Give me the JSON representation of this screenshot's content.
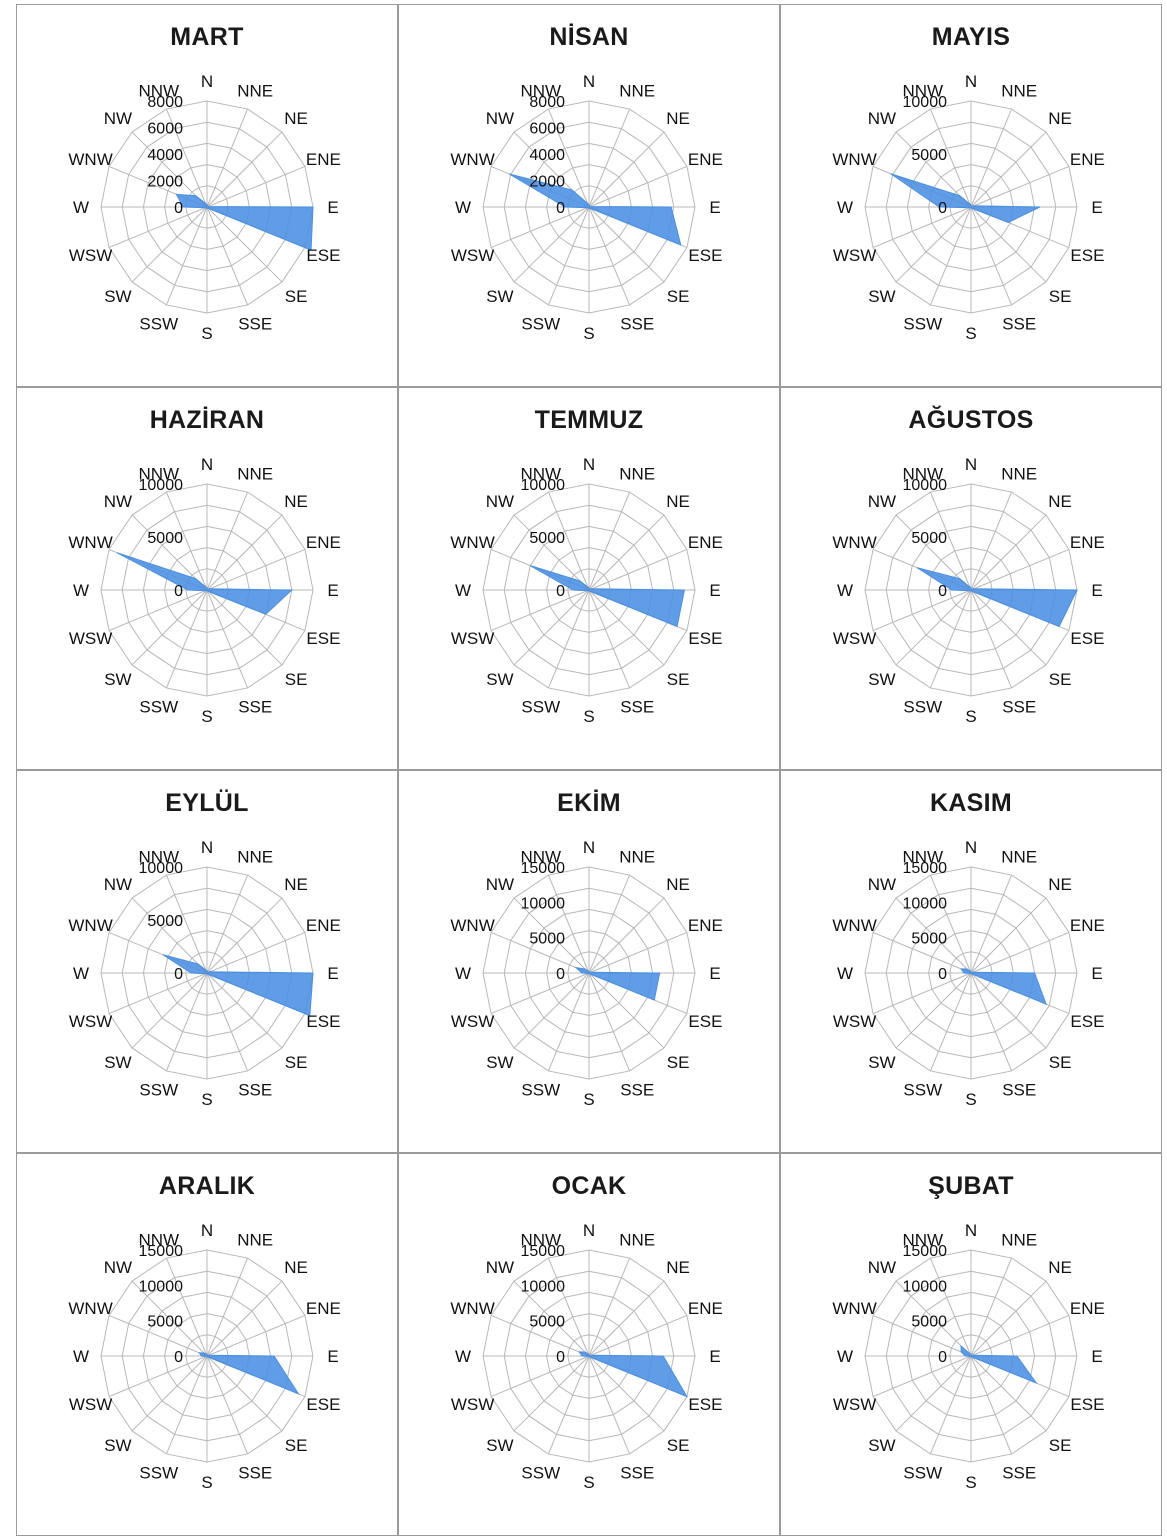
{
  "colors": {
    "fill": "#4a90e2",
    "grid": "#b8b8b8",
    "text": "#111111",
    "border": "#9a9a9a"
  },
  "chart_data": [
    {
      "type": "radar",
      "title": "MART",
      "directions": [
        "N",
        "NNE",
        "NE",
        "ENE",
        "E",
        "ESE",
        "SE",
        "SSE",
        "S",
        "SSW",
        "SW",
        "WSW",
        "W",
        "WNW",
        "NW",
        "NNW"
      ],
      "rmax": 8000,
      "ticks": [
        0,
        2000,
        4000,
        6000,
        8000
      ],
      "series": [
        {
          "values": [
            150,
            100,
            100,
            100,
            8000,
            8500,
            150,
            100,
            100,
            100,
            100,
            150,
            1800,
            2500,
            1200,
            300
          ]
        }
      ]
    },
    {
      "type": "radar",
      "title": "NİSAN",
      "directions": [
        "N",
        "NNE",
        "NE",
        "ENE",
        "E",
        "ESE",
        "SE",
        "SSE",
        "S",
        "SSW",
        "SW",
        "WSW",
        "W",
        "WNW",
        "NW",
        "NNW"
      ],
      "rmax": 8000,
      "ticks": [
        0,
        2000,
        4000,
        6000,
        8000
      ],
      "series": [
        {
          "values": [
            150,
            100,
            100,
            100,
            6200,
            7500,
            150,
            100,
            100,
            100,
            100,
            150,
            1800,
            6500,
            1800,
            300
          ]
        }
      ]
    },
    {
      "type": "radar",
      "title": "MAYIS",
      "directions": [
        "N",
        "NNE",
        "NE",
        "ENE",
        "E",
        "ESE",
        "SE",
        "SSE",
        "S",
        "SSW",
        "SW",
        "WSW",
        "W",
        "WNW",
        "NW",
        "NNW"
      ],
      "rmax": 10000,
      "ticks": [
        0,
        5000,
        10000
      ],
      "series": [
        {
          "values": [
            200,
            100,
            100,
            300,
            6500,
            3800,
            200,
            100,
            100,
            100,
            100,
            200,
            3000,
            8200,
            1500,
            300
          ]
        }
      ]
    },
    {
      "type": "radar",
      "title": "HAZİRAN",
      "directions": [
        "N",
        "NNE",
        "NE",
        "ENE",
        "E",
        "ESE",
        "SE",
        "SSE",
        "S",
        "SSW",
        "SW",
        "WSW",
        "W",
        "WNW",
        "NW",
        "NNW"
      ],
      "rmax": 10000,
      "ticks": [
        0,
        5000,
        10000
      ],
      "series": [
        {
          "values": [
            200,
            100,
            100,
            300,
            8000,
            6000,
            200,
            100,
            100,
            100,
            100,
            200,
            1800,
            9200,
            1500,
            300
          ]
        }
      ]
    },
    {
      "type": "radar",
      "title": "TEMMUZ",
      "directions": [
        "N",
        "NNE",
        "NE",
        "ENE",
        "E",
        "ESE",
        "SE",
        "SSE",
        "S",
        "SSW",
        "SW",
        "WSW",
        "W",
        "WNW",
        "NW",
        "NNW"
      ],
      "rmax": 10000,
      "ticks": [
        0,
        5000,
        10000
      ],
      "series": [
        {
          "values": [
            200,
            100,
            100,
            300,
            9000,
            9000,
            200,
            100,
            100,
            100,
            100,
            200,
            1500,
            6000,
            1200,
            300
          ]
        }
      ]
    },
    {
      "type": "radar",
      "title": "AĞUSTOS",
      "directions": [
        "N",
        "NNE",
        "NE",
        "ENE",
        "E",
        "ESE",
        "SE",
        "SSE",
        "S",
        "SSW",
        "SW",
        "WSW",
        "W",
        "WNW",
        "NW",
        "NNW"
      ],
      "rmax": 10000,
      "ticks": [
        0,
        5000,
        10000
      ],
      "series": [
        {
          "values": [
            200,
            100,
            100,
            300,
            10000,
            9000,
            200,
            100,
            100,
            100,
            100,
            200,
            1800,
            5500,
            1500,
            300
          ]
        }
      ]
    },
    {
      "type": "radar",
      "title": "EYLÜL",
      "directions": [
        "N",
        "NNE",
        "NE",
        "ENE",
        "E",
        "ESE",
        "SE",
        "SSE",
        "S",
        "SSW",
        "SW",
        "WSW",
        "W",
        "WNW",
        "NW",
        "NNW"
      ],
      "rmax": 10000,
      "ticks": [
        0,
        5000,
        10000
      ],
      "series": [
        {
          "values": [
            200,
            100,
            100,
            300,
            10000,
            10500,
            200,
            100,
            100,
            100,
            100,
            200,
            1500,
            4500,
            1200,
            300
          ]
        }
      ]
    },
    {
      "type": "radar",
      "title": "EKİM",
      "directions": [
        "N",
        "NNE",
        "NE",
        "ENE",
        "E",
        "ESE",
        "SE",
        "SSE",
        "S",
        "SSW",
        "SW",
        "WSW",
        "W",
        "WNW",
        "NW",
        "NNW"
      ],
      "rmax": 15000,
      "ticks": [
        0,
        5000,
        10000,
        15000
      ],
      "series": [
        {
          "values": [
            200,
            100,
            100,
            300,
            10000,
            10000,
            200,
            100,
            100,
            100,
            100,
            200,
            1000,
            2000,
            800,
            300
          ]
        }
      ]
    },
    {
      "type": "radar",
      "title": "KASIM",
      "directions": [
        "N",
        "NNE",
        "NE",
        "ENE",
        "E",
        "ESE",
        "SE",
        "SSE",
        "S",
        "SSW",
        "SW",
        "WSW",
        "W",
        "WNW",
        "NW",
        "NNW"
      ],
      "rmax": 15000,
      "ticks": [
        0,
        5000,
        10000,
        15000
      ],
      "series": [
        {
          "values": [
            200,
            100,
            100,
            300,
            9000,
            11500,
            200,
            100,
            100,
            100,
            100,
            200,
            1000,
            1500,
            800,
            300
          ]
        }
      ]
    },
    {
      "type": "radar",
      "title": "ARALIK",
      "directions": [
        "N",
        "NNE",
        "NE",
        "ENE",
        "E",
        "ESE",
        "SE",
        "SSE",
        "S",
        "SSW",
        "SW",
        "WSW",
        "W",
        "WNW",
        "NW",
        "NNW"
      ],
      "rmax": 15000,
      "ticks": [
        0,
        5000,
        10000,
        15000
      ],
      "series": [
        {
          "values": [
            200,
            100,
            100,
            300,
            9500,
            14000,
            200,
            100,
            100,
            100,
            100,
            200,
            800,
            1200,
            600,
            300
          ]
        }
      ]
    },
    {
      "type": "radar",
      "title": "OCAK",
      "directions": [
        "N",
        "NNE",
        "NE",
        "ENE",
        "E",
        "ESE",
        "SE",
        "SSE",
        "S",
        "SSW",
        "SW",
        "WSW",
        "W",
        "WNW",
        "NW",
        "NNW"
      ],
      "rmax": 15000,
      "ticks": [
        0,
        5000,
        10000,
        15000
      ],
      "series": [
        {
          "values": [
            200,
            100,
            100,
            300,
            10500,
            15000,
            200,
            100,
            100,
            100,
            100,
            200,
            1000,
            1500,
            800,
            300
          ]
        }
      ]
    },
    {
      "type": "radar",
      "title": "ŞUBAT",
      "directions": [
        "N",
        "NNE",
        "NE",
        "ENE",
        "E",
        "ESE",
        "SE",
        "SSE",
        "S",
        "SSW",
        "SW",
        "WSW",
        "W",
        "WNW",
        "NW",
        "NNW"
      ],
      "rmax": 15000,
      "ticks": [
        0,
        5000,
        10000,
        15000
      ],
      "series": [
        {
          "values": [
            200,
            100,
            100,
            300,
            6500,
            10000,
            200,
            100,
            100,
            100,
            100,
            200,
            800,
            1500,
            2000,
            300
          ]
        }
      ]
    }
  ]
}
